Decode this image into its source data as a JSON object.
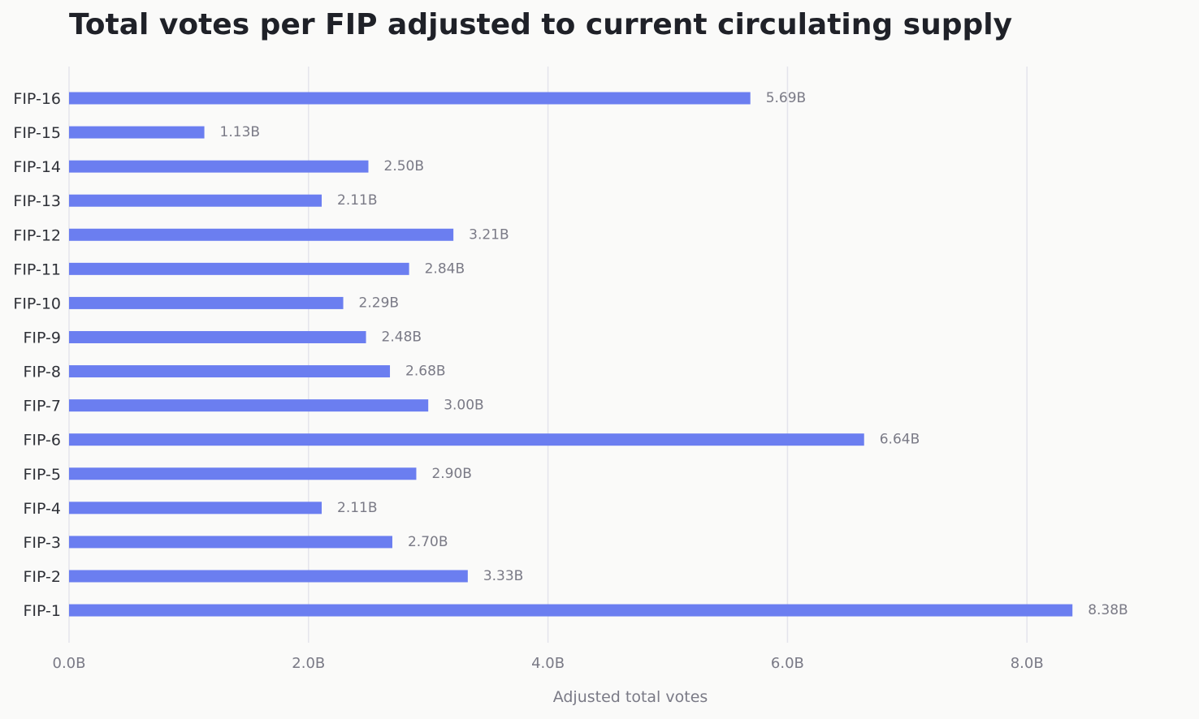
{
  "chart_data": {
    "type": "bar",
    "orientation": "horizontal",
    "title": "Total votes per FIP adjusted to current circulating supply",
    "xlabel": "Adjusted total votes",
    "ylabel": "",
    "categories": [
      "FIP-16",
      "FIP-15",
      "FIP-14",
      "FIP-13",
      "FIP-12",
      "FIP-11",
      "FIP-10",
      "FIP-9",
      "FIP-8",
      "FIP-7",
      "FIP-6",
      "FIP-5",
      "FIP-4",
      "FIP-3",
      "FIP-2",
      "FIP-1"
    ],
    "values": [
      5.69,
      1.13,
      2.5,
      2.11,
      3.21,
      2.84,
      2.29,
      2.48,
      2.68,
      3.0,
      6.64,
      2.9,
      2.11,
      2.7,
      3.33,
      8.38
    ],
    "value_labels": [
      "5.69B",
      "1.13B",
      "2.50B",
      "2.11B",
      "3.21B",
      "2.84B",
      "2.29B",
      "2.48B",
      "2.68B",
      "3.00B",
      "6.64B",
      "2.90B",
      "2.11B",
      "2.70B",
      "3.33B",
      "8.38B"
    ],
    "xticks": [
      0,
      2,
      4,
      6,
      8
    ],
    "xtick_labels": [
      "0.0B",
      "2.0B",
      "4.0B",
      "6.0B",
      "8.0B"
    ],
    "xlim": [
      0,
      9.2
    ],
    "grid": "vertical",
    "legend": "none",
    "bar_color": "#6b7ef0"
  }
}
